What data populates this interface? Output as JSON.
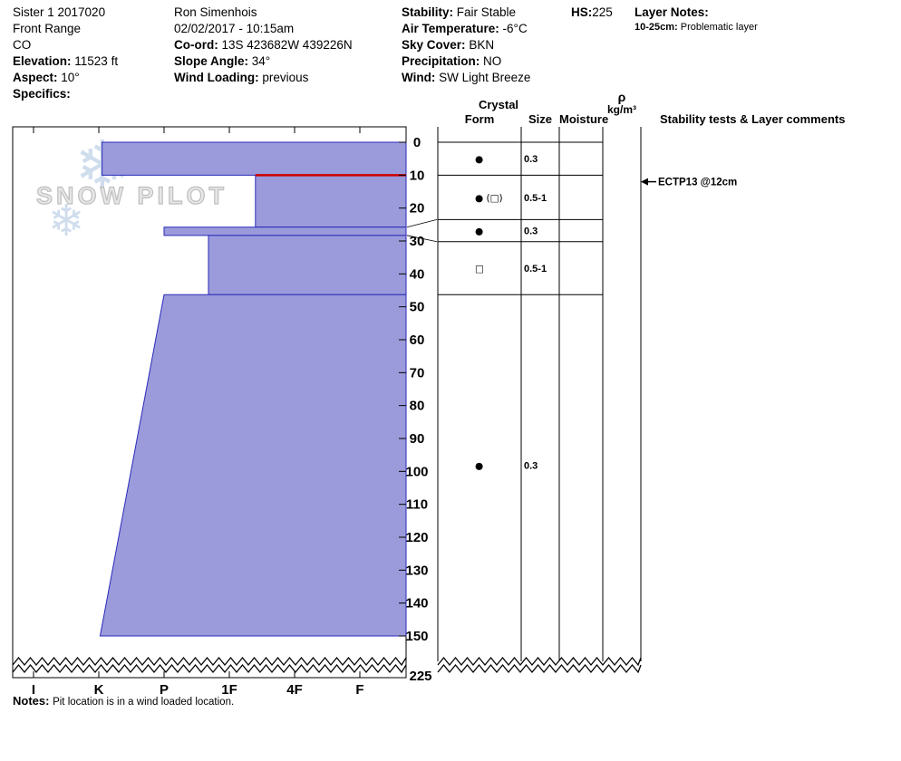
{
  "header": {
    "col1": {
      "pit_name": "Sister 1 2017020",
      "range": "Front Range",
      "state": "CO",
      "elevation_label": "Elevation:",
      "elevation_value": "11523 ft",
      "aspect_label": "Aspect:",
      "aspect_value": "10°",
      "specifics_label": "Specifics:"
    },
    "col2": {
      "observer": "Ron Simenhois",
      "datetime": "02/02/2017 - 10:15am",
      "coord_label": "Co-ord:",
      "coord_value": "13S 423682W 439226N",
      "slope_angle_label": "Slope Angle:",
      "slope_angle_value": "34°",
      "wind_loading_label": "Wind Loading:",
      "wind_loading_value": "previous"
    },
    "col3": {
      "stability_label": "Stability:",
      "stability_value": "Fair Stable",
      "air_temp_label": "Air Temperature:",
      "air_temp_value": "-6°C",
      "sky_cover_label": "Sky Cover:",
      "sky_cover_value": "BKN",
      "precip_label": "Precipitation:",
      "precip_value": "NO",
      "wind_label": "Wind:",
      "wind_value": "SW Light Breeze"
    },
    "hs_label": "HS:",
    "hs_value": "225",
    "layer_notes_label": "Layer Notes:",
    "layer_note_range": "10-25cm:",
    "layer_note_text": "Problematic layer"
  },
  "watermark": {
    "text": "SNOW PILOT",
    "snowflake": "❄"
  },
  "table_headers": {
    "crystal": "Crystal",
    "form": "Form",
    "size": "Size",
    "moisture": "Moisture",
    "rho": "ρ",
    "rho_units": "kg/m³",
    "comments": "Stability tests & Layer comments"
  },
  "notes": {
    "label": "Notes:",
    "text": "Pit location is in a wind loaded location."
  },
  "chart_data": {
    "type": "snow-hardness-profile",
    "hardness_axis": {
      "labels": [
        "I",
        "K",
        "P",
        "1F",
        "4F",
        "F"
      ],
      "note": "hand hardness, hardest (I) at left, softest (F) at right; bars extend left from soft edge"
    },
    "depth_axis": {
      "unit": "cm",
      "ticks": [
        0,
        10,
        20,
        30,
        40,
        50,
        60,
        70,
        80,
        90,
        100,
        110,
        120,
        130,
        140,
        150
      ],
      "break_after_cm": 150,
      "total_height_label": "225"
    },
    "bar_fill": "#9b9bdc",
    "bar_stroke": "#2a2ab8",
    "flag_color": "#cc0000",
    "layers": [
      {
        "top_cm": 0,
        "bottom_cm": 10,
        "hardness_index_top": 1.05,
        "hardness_index_bottom": 1.05,
        "grain_form": "●",
        "grain_size_mm": "0.3",
        "row_top_cm": 0,
        "row_bottom_cm": 10,
        "flagged": false
      },
      {
        "top_cm": 10,
        "bottom_cm": 25.8,
        "hardness_index_top": 3.4,
        "hardness_index_bottom": 3.4,
        "grain_form": "● (□)",
        "grain_size_mm": "0.5-1",
        "row_top_cm": 10,
        "row_bottom_cm": 23.5,
        "flagged": true
      },
      {
        "top_cm": 25.8,
        "bottom_cm": 28.3,
        "hardness_index_top": 2.0,
        "hardness_index_bottom": 2.0,
        "grain_form": "●",
        "grain_size_mm": "0.3",
        "row_top_cm": 23.5,
        "row_bottom_cm": 30.2,
        "flagged": false
      },
      {
        "top_cm": 28.3,
        "bottom_cm": 46.3,
        "hardness_index_top": 2.68,
        "hardness_index_bottom": 2.68,
        "grain_form": "□",
        "grain_size_mm": "0.5-1",
        "row_top_cm": 30.2,
        "row_bottom_cm": 46.3,
        "flagged": false
      },
      {
        "top_cm": 46.3,
        "bottom_cm": 150,
        "hardness_index_top": 2.0,
        "hardness_index_bottom": 1.02,
        "grain_form": "●",
        "grain_size_mm": "0.3",
        "row_top_cm": 46.3,
        "row_bottom_cm": 150,
        "flagged": false
      }
    ],
    "stability_tests": [
      {
        "label": "ECTP13 @12cm",
        "depth_cm": 12
      }
    ]
  }
}
